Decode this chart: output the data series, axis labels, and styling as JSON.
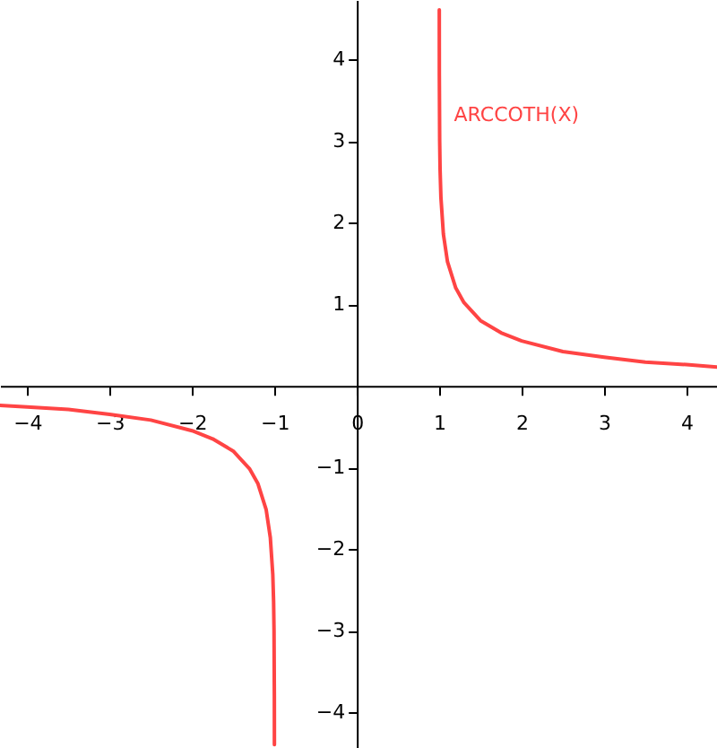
{
  "chart_data": {
    "type": "line",
    "xlim": [
      -4.33,
      4.37
    ],
    "ylim": [
      -4.44,
      4.73
    ],
    "xticks": [
      -4,
      -3,
      -2,
      -1,
      0,
      1,
      2,
      3,
      4
    ],
    "yticks": [
      -4,
      -3,
      -2,
      -1,
      1,
      2,
      3,
      4
    ],
    "grid": false,
    "series": [
      {
        "color": "#ff4444",
        "x": [
          -4.33,
          -4,
          -3.5,
          -3,
          -2.5,
          -2,
          -1.75,
          -1.5,
          -1.3,
          -1.2,
          -1.1,
          -1.05,
          -1.02,
          -1.01,
          -1.005,
          -1.001,
          -1.0003
        ],
        "values": [
          -0.24,
          -0.26,
          -0.29,
          -0.35,
          -0.42,
          -0.55,
          -0.65,
          -0.8,
          -1.02,
          -1.2,
          -1.52,
          -1.86,
          -2.31,
          -2.65,
          -3.0,
          -3.8,
          -4.4
        ]
      },
      {
        "name": "ARCCOTH(X)",
        "color": "#ff4444",
        "x": [
          1.0002,
          1.001,
          1.005,
          1.01,
          1.02,
          1.05,
          1.1,
          1.2,
          1.3,
          1.5,
          1.75,
          2,
          2.5,
          3,
          3.5,
          4,
          4.37
        ],
        "values": [
          4.61,
          3.8,
          3.0,
          2.65,
          2.31,
          1.86,
          1.52,
          1.2,
          1.02,
          0.8,
          0.65,
          0.55,
          0.42,
          0.35,
          0.29,
          0.26,
          0.23
        ]
      }
    ]
  }
}
